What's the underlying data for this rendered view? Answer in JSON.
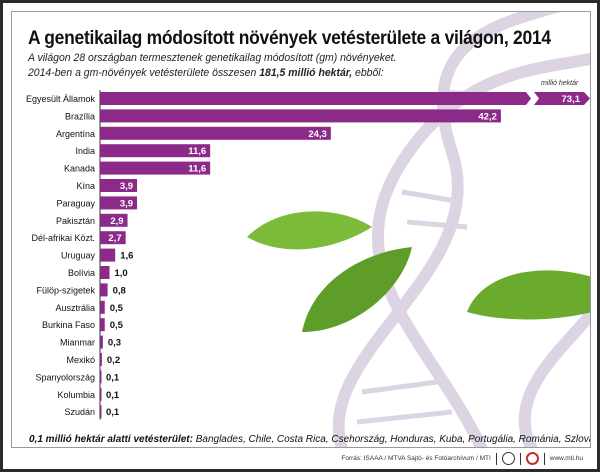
{
  "title": "A genetikailag módosított növények vetésterülete a világon, 2014",
  "subtitle_line1": "A világon 28 országban termesztenek genetikailag módosított (gm) növényeket.",
  "subtitle_line2_pre": "2014-ben a gm-növények vetésterülete összesen ",
  "subtitle_line2_bold": "181,5 millió hektár,",
  "subtitle_line2_post": " ebből:",
  "note_bold": "0,1 millió hektár alatti vetésterület:",
  "note_text": " Banglades, Chile, Costa Rica, Csehország, Honduras, Kuba, Portugália, Románia, Szlovákia",
  "footer": {
    "source": "Forrás: ISAAA / MTVA Sajtó- és Fotóarchívum / MTI",
    "url": "www.mti.hu"
  },
  "colors": {
    "bar": "#8b2a88",
    "leaf": "#6aaa2c",
    "dna": "#ddd4e3"
  },
  "chart_data": {
    "type": "bar",
    "orientation": "horizontal",
    "unit": "millió hektár",
    "axis_break_on": "Egyesült Államok",
    "categories": [
      "Egyesült Államok",
      "Brazília",
      "Argentína",
      "India",
      "Kanada",
      "Kína",
      "Paraguay",
      "Pakisztán",
      "Dél-afrikai Közt.",
      "Uruguay",
      "Bolívia",
      "Fülöp-szigetek",
      "Ausztrália",
      "Burkina Faso",
      "Mianmar",
      "Mexikó",
      "Spanyolország",
      "Kolumbia",
      "Szudán"
    ],
    "values": [
      73.1,
      42.2,
      24.3,
      11.6,
      11.6,
      3.9,
      3.9,
      2.9,
      2.7,
      1.6,
      1.0,
      0.8,
      0.5,
      0.5,
      0.3,
      0.2,
      0.1,
      0.1,
      0.1
    ],
    "labels": [
      "73,1",
      "42,2",
      "24,3",
      "11,6",
      "11,6",
      "3,9",
      "3,9",
      "2,9",
      "2,7",
      "1,6",
      "1,0",
      "0,8",
      "0,5",
      "0,5",
      "0,3",
      "0,2",
      "0,1",
      "0,1",
      "0,1"
    ]
  }
}
